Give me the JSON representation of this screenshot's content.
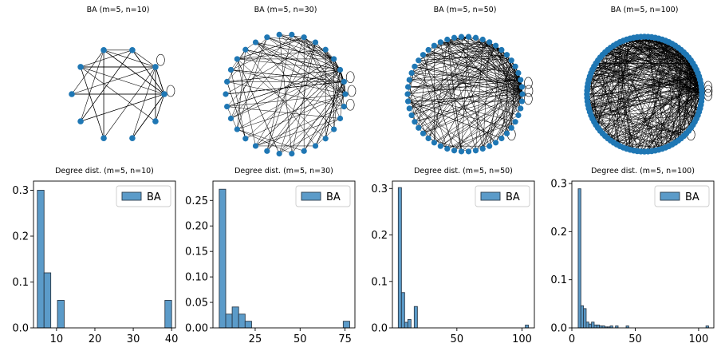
{
  "colors": {
    "node": "#1f77b4",
    "edge": "#000000",
    "bar": "#5b9bc9",
    "bar_edge": "#2b3b4b"
  },
  "networks": [
    {
      "title": "BA (m=5, n=10)",
      "n": 10,
      "m": 5,
      "self_loops": 2
    },
    {
      "title": "BA (m=5, n=30)",
      "n": 30,
      "m": 5,
      "self_loops": 3
    },
    {
      "title": "BA (m=5, n=50)",
      "n": 50,
      "m": 5,
      "self_loops": 4
    },
    {
      "title": "BA (m=5, n=100)",
      "n": 100,
      "m": 5,
      "self_loops": 4
    }
  ],
  "chart_data": [
    {
      "type": "bar",
      "title": "Degree dist. (m=5, n=10)",
      "legend": [
        "BA"
      ],
      "legend_position": "top-right",
      "xlim": [
        4,
        41
      ],
      "ylim": [
        0,
        0.32
      ],
      "xticks": [
        10,
        20,
        30,
        40
      ],
      "yticks": [
        0.0,
        0.1,
        0.2,
        0.3
      ],
      "yticklabels": [
        "0.0",
        "0.1",
        "0.2",
        "0.3"
      ],
      "bins": [
        [
          5,
          6.75,
          0.3
        ],
        [
          6.75,
          8.5,
          0.12
        ],
        [
          10.25,
          12.0,
          0.06
        ],
        [
          38.25,
          40.0,
          0.06
        ]
      ]
    },
    {
      "type": "bar",
      "title": "Degree dist. (m=5, n=30)",
      "legend": [
        "BA"
      ],
      "legend_position": "top-right",
      "xlim": [
        1.5,
        80.5
      ],
      "ylim": [
        0,
        0.288
      ],
      "xticks": [
        25,
        50,
        75
      ],
      "yticks": [
        0.0,
        0.05,
        0.1,
        0.15,
        0.2,
        0.25
      ],
      "yticklabels": [
        "0.00",
        "0.05",
        "0.10",
        "0.15",
        "0.20",
        "0.25"
      ],
      "bins": [
        [
          5,
          8.6,
          0.272
        ],
        [
          8.6,
          12.2,
          0.027
        ],
        [
          12.2,
          15.8,
          0.041
        ],
        [
          15.8,
          19.4,
          0.027
        ],
        [
          19.4,
          23.0,
          0.013
        ],
        [
          74.0,
          77.6,
          0.013
        ]
      ]
    },
    {
      "type": "bar",
      "title": "Degree dist. (m=5, n=50)",
      "legend": [
        "BA"
      ],
      "legend_position": "top-right",
      "xlim": [
        0.5,
        109.5
      ],
      "ylim": [
        0,
        0.316
      ],
      "xticks": [
        50,
        100
      ],
      "yticks": [
        0.0,
        0.1,
        0.2,
        0.3
      ],
      "yticklabels": [
        "0.0",
        "0.1",
        "0.2",
        "0.3"
      ],
      "bins": [
        [
          5,
          7.45,
          0.302
        ],
        [
          7.45,
          9.9,
          0.076
        ],
        [
          9.9,
          12.35,
          0.012
        ],
        [
          12.35,
          14.8,
          0.018
        ],
        [
          17.25,
          19.7,
          0.046
        ],
        [
          102.55,
          105.0,
          0.006
        ]
      ]
    },
    {
      "type": "bar",
      "title": "Degree dist. (m=5, n=100)",
      "legend": [
        "BA"
      ],
      "legend_position": "top-right",
      "xlim": [
        0,
        112
      ],
      "ylim": [
        0,
        0.305
      ],
      "xticks": [
        0,
        50,
        100
      ],
      "yticks": [
        0.0,
        0.1,
        0.2,
        0.3
      ],
      "yticklabels": [
        "0.0",
        "0.1",
        "0.2",
        "0.3"
      ],
      "bins": [
        [
          5,
          7.1,
          0.289
        ],
        [
          7.1,
          9.2,
          0.046
        ],
        [
          9.2,
          11.3,
          0.04
        ],
        [
          11.3,
          13.4,
          0.012
        ],
        [
          13.4,
          15.5,
          0.008
        ],
        [
          15.5,
          17.6,
          0.012
        ],
        [
          17.6,
          19.7,
          0.006
        ],
        [
          19.7,
          21.8,
          0.006
        ],
        [
          21.8,
          23.9,
          0.004
        ],
        [
          23.9,
          26.0,
          0.004
        ],
        [
          26.0,
          28.1,
          0.002
        ],
        [
          28.1,
          30.2,
          0.002
        ],
        [
          30.2,
          32.3,
          0.004
        ],
        [
          34.4,
          36.5,
          0.004
        ],
        [
          42.8,
          44.9,
          0.004
        ],
        [
          105.8,
          107.9,
          0.004
        ]
      ]
    }
  ]
}
